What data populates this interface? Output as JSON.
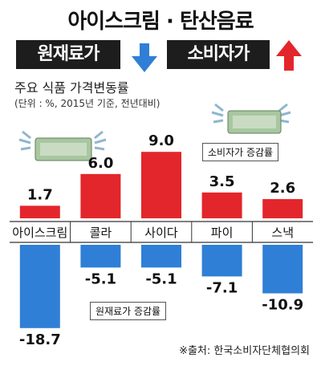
{
  "header": {
    "title": "아이스크림 · 탄산음료",
    "left_tag": "원재료가",
    "right_tag": "소비자가",
    "subtitle": "주요 식품 가격변동률",
    "unit_note": "(단위 : %, 2015년 기준, 전년대비)",
    "source": "※출처: 한국소비자단체협의회"
  },
  "chart_data": {
    "type": "bar",
    "categories": [
      "아이스크림",
      "콜라",
      "사이다",
      "파이",
      "스낵"
    ],
    "series": [
      {
        "name": "소비자가 증감률",
        "values": [
          1.7,
          6.0,
          9.0,
          3.5,
          2.6
        ],
        "color": "#e3262b"
      },
      {
        "name": "원재료가 증감률",
        "values": [
          -18.7,
          -5.1,
          -5.1,
          -7.1,
          -10.9
        ],
        "color": "#2f7fd6"
      }
    ],
    "value_labels": {
      "consumer": [
        "1.7",
        "6.0",
        "9.0",
        "3.5",
        "2.6"
      ],
      "material": [
        "-18.7",
        "-5.1",
        "-5.1",
        "-7.1",
        "-10.9"
      ]
    }
  },
  "colors": {
    "up_arrow": "#e3262b",
    "down_arrow": "#2f7fd6",
    "tag_bg": "#1d1d1d"
  }
}
